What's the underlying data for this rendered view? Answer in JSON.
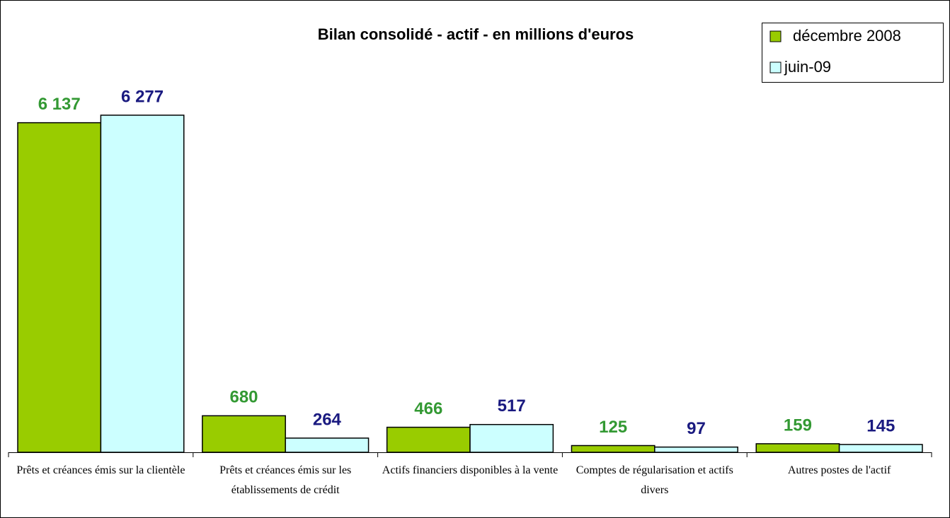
{
  "chart_data": {
    "type": "bar",
    "title": "Bilan consolidé - actif - en millions d'euros",
    "categories": [
      "Prêts et créances émis sur la clientèle",
      "Prêts et créances émis sur les établissements de crédit",
      "Actifs financiers disponibles à la vente",
      "Comptes de régularisation et actifs divers",
      "Autres postes de l'actif"
    ],
    "series": [
      {
        "name": "décembre 2008",
        "color": "#99cc00",
        "label_color": "#339933",
        "values": [
          6137,
          680,
          466,
          125,
          159
        ],
        "value_labels": [
          "6 137",
          "680",
          "466",
          "125",
          "159"
        ]
      },
      {
        "name": "juin-09",
        "color": "#ccffff",
        "label_color": "#1a1a80",
        "values": [
          6277,
          264,
          517,
          97,
          145
        ],
        "value_labels": [
          "6 277",
          "264",
          "517",
          "97",
          "145"
        ]
      }
    ],
    "legend": "top-right"
  }
}
